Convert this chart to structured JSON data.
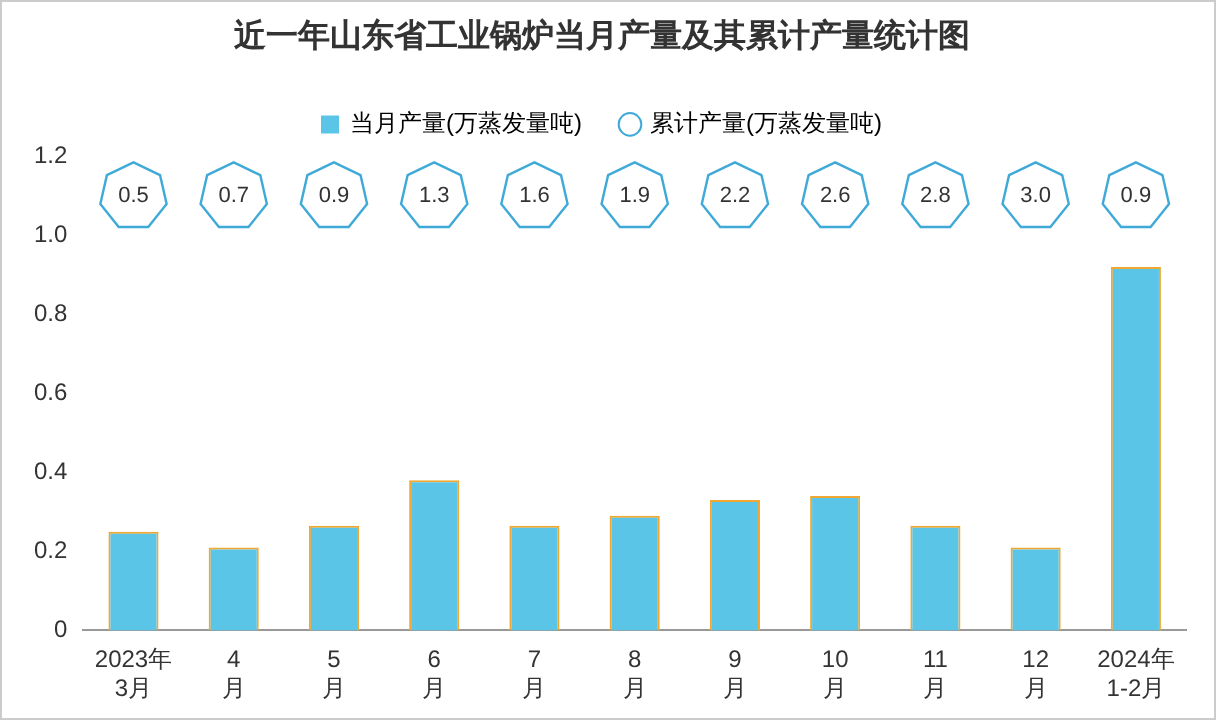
{
  "chart_data": {
    "type": "bar",
    "title": "近一年山东省工业锅炉当月产量及其累计产量统计图",
    "categories": [
      "2023年3月",
      "4月",
      "5月",
      "6月",
      "7月",
      "8月",
      "9月",
      "10月",
      "11月",
      "12月",
      "2024年1-2月"
    ],
    "series": [
      {
        "name": "当月产量(万蒸发量吨)",
        "color": "#5bc5e8",
        "values": [
          0.25,
          0.21,
          0.265,
          0.38,
          0.265,
          0.29,
          0.33,
          0.34,
          0.265,
          0.21,
          0.92
        ]
      },
      {
        "name": "累计产量(万蒸发量吨)",
        "type": "other",
        "color": "#3fa9d8",
        "values": [
          null,
          null,
          null,
          null,
          null,
          null,
          null,
          null,
          null,
          null,
          null
        ]
      }
    ],
    "annotations": [
      {
        "text": "0.5",
        "x": "2023年3月"
      },
      {
        "text": "0.7",
        "x": "4月"
      },
      {
        "text": "0.9",
        "x": "5月"
      },
      {
        "text": "1.3",
        "x": "6月"
      },
      {
        "text": "1.6",
        "x": "7月"
      },
      {
        "text": "1.9",
        "x": "8月"
      },
      {
        "text": "2.2",
        "x": "9月"
      },
      {
        "text": "2.6",
        "x": "10月"
      },
      {
        "text": "2.8",
        "x": "11月"
      },
      {
        "text": "3.0",
        "x": "12月"
      },
      {
        "text": "0.9",
        "x": "2024年1-2月"
      }
    ],
    "ylim": [
      0,
      1.2
    ],
    "yticks": [
      0,
      0.2,
      0.4,
      0.6,
      0.8,
      {
        "value": 1,
        "label": "1.0"
      },
      1.2
    ],
    "grid": false,
    "legend": "top"
  }
}
